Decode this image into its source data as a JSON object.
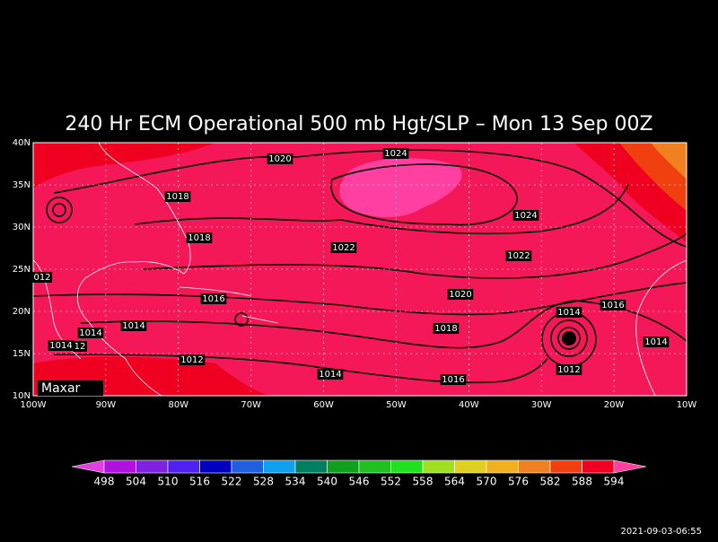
{
  "title": "240 Hr ECM Operational 500 mb Hgt/SLP – Mon 13 Sep 00Z",
  "map": {
    "xlim": [
      -100,
      -10
    ],
    "ylim": [
      10,
      40
    ],
    "xticks": [
      {
        "value": -100,
        "label": "100W"
      },
      {
        "value": -90,
        "label": "90W"
      },
      {
        "value": -80,
        "label": "80W"
      },
      {
        "value": -70,
        "label": "70W"
      },
      {
        "value": -60,
        "label": "60W"
      },
      {
        "value": -50,
        "label": "50W"
      },
      {
        "value": -40,
        "label": "40W"
      },
      {
        "value": -30,
        "label": "30W"
      },
      {
        "value": -20,
        "label": "20W"
      },
      {
        "value": -10,
        "label": "10W"
      }
    ],
    "yticks": [
      {
        "value": 10,
        "label": "10N"
      },
      {
        "value": 15,
        "label": "15N"
      },
      {
        "value": 20,
        "label": "20N"
      },
      {
        "value": 25,
        "label": "25N"
      },
      {
        "value": 30,
        "label": "30N"
      },
      {
        "value": 35,
        "label": "35N"
      },
      {
        "value": 40,
        "label": "40N"
      }
    ],
    "isobar_labels": [
      "1020",
      "1024",
      "1018",
      "1024",
      "1018",
      "1022",
      "1022",
      "012",
      "1020",
      "1016",
      "1016",
      "1014",
      "1014",
      "1018",
      "1014",
      "1014",
      "1014",
      "12",
      "1012",
      "1012",
      "1014",
      "1016"
    ],
    "logo": "Maxar"
  },
  "colorbar": {
    "levels": [
      "498",
      "504",
      "510",
      "516",
      "522",
      "528",
      "534",
      "540",
      "546",
      "552",
      "558",
      "564",
      "570",
      "576",
      "582",
      "588",
      "594"
    ],
    "colors": [
      "#e040e0",
      "#b010e0",
      "#8020e0",
      "#5020f0",
      "#0000c0",
      "#2060e0",
      "#10a0f0",
      "#008060",
      "#10a020",
      "#20c020",
      "#20e020",
      "#a0e020",
      "#e0d020",
      "#f0b020",
      "#f08020",
      "#f04010",
      "#f00020",
      "#ff1a5a",
      "#ff40a0"
    ]
  },
  "timestamp": "2021-09-03-06:55"
}
